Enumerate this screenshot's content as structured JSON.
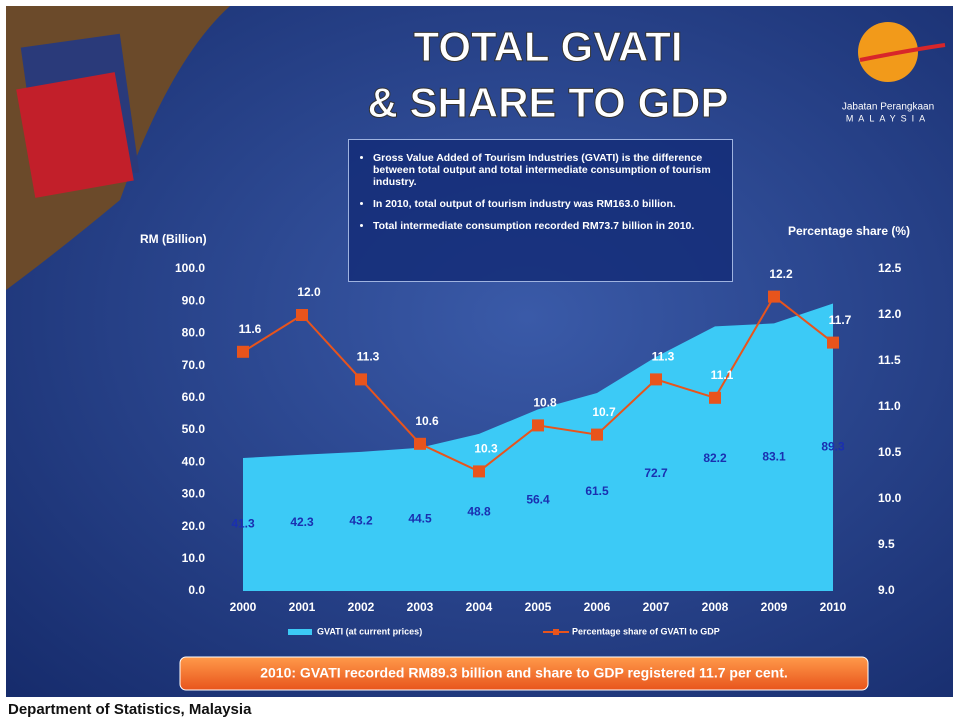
{
  "title": [
    "TOTAL GVATI",
    "& SHARE TO GDP"
  ],
  "logo": {
    "name": "Jabatan Perangkaan",
    "country": "MALAYSIA"
  },
  "notes": [
    "Gross Value Added of Tourism Industries (GVATI) is the difference between total output and total intermediate consumption of tourism industry.",
    "In 2010, total output of tourism industry was RM163.0 billion.",
    "Total intermediate consumption recorded RM73.7 billion in 2010."
  ],
  "highlight": "2010: GVATI recorded RM89.3 billion and share to GDP registered 11.7 per cent.",
  "footer": "Department of Statistics, Malaysia",
  "chart_data": {
    "type": "combo",
    "y_label": "RM (Billion)",
    "y2_label": "Percentage share (%)",
    "categories": [
      "2000",
      "2001",
      "2002",
      "2003",
      "2004",
      "2005",
      "2006",
      "2007",
      "2008",
      "2009",
      "2010"
    ],
    "series": [
      {
        "name": "GVATI (at current prices)",
        "type": "area",
        "color": "#3ccaf6",
        "values": [
          41.3,
          42.3,
          43.2,
          44.5,
          48.8,
          56.4,
          61.5,
          72.7,
          82.2,
          83.1,
          89.3
        ]
      },
      {
        "name": "Percentage share of GVATI to GDP",
        "type": "line",
        "axis": "y2",
        "color": "#e8541c",
        "values": [
          11.6,
          12,
          11.3,
          10.6,
          10.3,
          10.8,
          10.7,
          11.3,
          11.1,
          12.2,
          11.7
        ],
        "value_labels": [
          "11.6",
          "12.0",
          "11.3",
          "10.6",
          "10.3",
          "10.8",
          "10.7",
          "11.3",
          "11.1",
          "12.2",
          "11.7"
        ]
      }
    ],
    "ylim": [
      0,
      100
    ],
    "yticks": [
      {
        "value": 0,
        "label": "0.0"
      },
      {
        "value": 10,
        "label": "10.0"
      },
      {
        "value": 20,
        "label": "20.0"
      },
      {
        "value": 30,
        "label": "30.0"
      },
      {
        "value": 40,
        "label": "40.0"
      },
      {
        "value": 50,
        "label": "50.0"
      },
      {
        "value": 60,
        "label": "60.0"
      },
      {
        "value": 70,
        "label": "70.0"
      },
      {
        "value": 80,
        "label": "80.0"
      },
      {
        "value": 90,
        "label": "90.0"
      },
      {
        "value": 100,
        "label": "100.0"
      }
    ],
    "y2lim": [
      9,
      12.5
    ],
    "y2ticks": [
      {
        "value": 9,
        "label": "9.0"
      },
      9.5,
      {
        "value": 10,
        "label": "10.0"
      },
      10.5,
      {
        "value": 11,
        "label": "11.0"
      },
      11.5,
      {
        "value": 12,
        "label": "12.0"
      },
      12.5
    ]
  }
}
